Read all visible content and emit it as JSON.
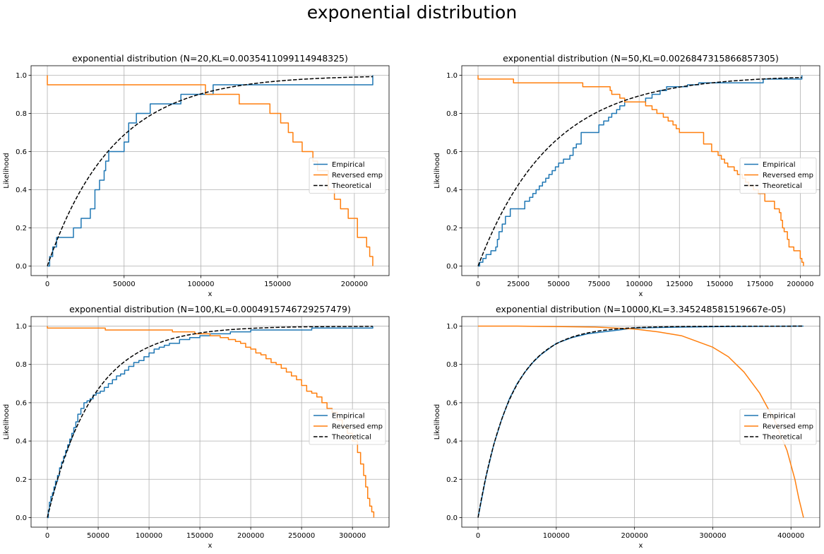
{
  "figure": {
    "suptitle": "exponential distribution"
  },
  "legend_labels": [
    "Empirical",
    "Reversed emp",
    "Theoretical"
  ],
  "colors": {
    "empirical": "#1f77b4",
    "reversed": "#ff7f0e",
    "theoretical": "#000000",
    "grid": "#b0b0b0"
  },
  "chart_data": [
    {
      "type": "line",
      "title": "exponential distribution (N=20,KL=0.0035411099114948325)",
      "xlabel": "x",
      "ylabel": "Likelihood",
      "xlim": [
        -10600,
        222600
      ],
      "ylim": [
        -0.05,
        1.05
      ],
      "xticks": [
        0,
        50000,
        100000,
        150000,
        200000
      ],
      "yticks": [
        0.0,
        0.2,
        0.4,
        0.6,
        0.8,
        1.0
      ],
      "grid": true,
      "legend_position": "center right",
      "theoretical_scale": 43000,
      "series": [
        {
          "name": "Empirical",
          "style": "step",
          "x": [
            0,
            1500,
            3500,
            6000,
            12000,
            17000,
            22000,
            25000,
            28000,
            31000,
            34000,
            37000,
            38000,
            40000,
            42000,
            45000,
            50000,
            53000,
            58000,
            62000,
            67000,
            87000,
            105000,
            108000,
            212000
          ],
          "y": [
            0,
            0.05,
            0.1,
            0.15,
            0.15,
            0.2,
            0.25,
            0.25,
            0.3,
            0.4,
            0.45,
            0.5,
            0.55,
            0.6,
            0.6,
            0.6,
            0.65,
            0.75,
            0.8,
            0.8,
            0.85,
            0.9,
            0.9,
            0.95,
            1.0
          ]
        },
        {
          "name": "Reversed emp",
          "style": "step",
          "x": [
            0,
            0,
            103000,
            108000,
            125000,
            145000,
            152000,
            157000,
            160000,
            166000,
            173000,
            176000,
            183000,
            187000,
            191000,
            196000,
            202000,
            208000,
            210000,
            212000
          ],
          "y": [
            1.0,
            0.95,
            0.9,
            0.9,
            0.85,
            0.8,
            0.75,
            0.7,
            0.65,
            0.6,
            0.55,
            0.5,
            0.4,
            0.35,
            0.3,
            0.25,
            0.15,
            0.1,
            0.05,
            0.0
          ]
        }
      ]
    },
    {
      "type": "line",
      "title": "exponential distribution (N=50,KL=0.0026847315866857305)",
      "xlabel": "x",
      "ylabel": "Likelihood",
      "xlim": [
        -10100,
        212100
      ],
      "ylim": [
        -0.05,
        1.05
      ],
      "xticks": [
        0,
        25000,
        50000,
        75000,
        100000,
        125000,
        150000,
        175000,
        200000
      ],
      "yticks": [
        0.0,
        0.2,
        0.4,
        0.6,
        0.8,
        1.0
      ],
      "grid": true,
      "legend_position": "center right",
      "theoretical_scale": 45000,
      "series": [
        {
          "name": "Empirical",
          "style": "step",
          "x": [
            0,
            1000,
            3000,
            5000,
            8000,
            11000,
            12000,
            13000,
            15000,
            17000,
            20000,
            24000,
            29000,
            32000,
            34000,
            36000,
            38000,
            40000,
            42000,
            44000,
            46000,
            48000,
            50000,
            53000,
            57000,
            59000,
            61000,
            64000,
            68000,
            75000,
            78000,
            81000,
            83000,
            86000,
            88000,
            91000,
            96000,
            99000,
            101000,
            104000,
            108000,
            113000,
            117000,
            120000,
            130000,
            137000,
            143000,
            150000,
            177000,
            189000,
            201000
          ],
          "y": [
            0,
            0.02,
            0.04,
            0.06,
            0.08,
            0.1,
            0.14,
            0.18,
            0.22,
            0.26,
            0.3,
            0.3,
            0.34,
            0.36,
            0.38,
            0.4,
            0.42,
            0.44,
            0.46,
            0.48,
            0.5,
            0.52,
            0.54,
            0.56,
            0.58,
            0.62,
            0.64,
            0.7,
            0.7,
            0.74,
            0.76,
            0.78,
            0.8,
            0.82,
            0.84,
            0.86,
            0.86,
            0.86,
            0.86,
            0.88,
            0.9,
            0.92,
            0.94,
            0.94,
            0.95,
            0.96,
            0.96,
            0.96,
            0.98,
            0.98,
            1.0
          ]
        },
        {
          "name": "Reversed emp",
          "style": "step",
          "x": [
            0,
            0,
            22000,
            65000,
            82000,
            83000,
            88000,
            91000,
            96000,
            104000,
            108000,
            111000,
            115000,
            118000,
            121000,
            123000,
            125000,
            137000,
            140000,
            145000,
            149000,
            151000,
            153000,
            155000,
            159000,
            161000,
            164000,
            166000,
            168000,
            171000,
            174000,
            178000,
            184000,
            187000,
            188000,
            189000,
            190000,
            192000,
            193000,
            196000,
            200000,
            201000,
            202000
          ],
          "y": [
            1.0,
            0.98,
            0.96,
            0.94,
            0.92,
            0.9,
            0.88,
            0.86,
            0.86,
            0.84,
            0.82,
            0.8,
            0.78,
            0.76,
            0.74,
            0.72,
            0.7,
            0.7,
            0.64,
            0.6,
            0.58,
            0.56,
            0.54,
            0.52,
            0.5,
            0.48,
            0.46,
            0.44,
            0.42,
            0.4,
            0.38,
            0.34,
            0.3,
            0.28,
            0.24,
            0.2,
            0.18,
            0.14,
            0.1,
            0.08,
            0.04,
            0.02,
            0.0
          ]
        }
      ]
    },
    {
      "type": "line",
      "title": "exponential distribution (N=100,KL=0.0004915746729257479)",
      "xlabel": "x",
      "ylabel": "Likelihood",
      "xlim": [
        -16000,
        336000
      ],
      "ylim": [
        -0.05,
        1.05
      ],
      "xticks": [
        0,
        50000,
        100000,
        150000,
        200000,
        250000,
        300000
      ],
      "yticks": [
        0.0,
        0.2,
        0.4,
        0.6,
        0.8,
        1.0
      ],
      "grid": true,
      "legend_position": "center right",
      "theoretical_scale": 45000,
      "series": [
        {
          "name": "Empirical",
          "style": "step",
          "x": [
            0,
            1000,
            2000,
            3500,
            5000,
            6500,
            8000,
            10000,
            12000,
            14000,
            16000,
            18000,
            20000,
            22000,
            24000,
            26000,
            28000,
            30000,
            33000,
            36000,
            39000,
            42000,
            45000,
            48000,
            52000,
            56000,
            60000,
            64000,
            68000,
            72000,
            76000,
            80000,
            85000,
            90000,
            95000,
            100000,
            105000,
            110000,
            115000,
            120000,
            130000,
            140000,
            150000,
            160000,
            180000,
            200000,
            230000,
            260000,
            290000,
            320000
          ],
          "y": [
            0,
            0.04,
            0.08,
            0.11,
            0.13,
            0.16,
            0.19,
            0.22,
            0.26,
            0.29,
            0.32,
            0.35,
            0.38,
            0.41,
            0.44,
            0.47,
            0.5,
            0.54,
            0.57,
            0.6,
            0.61,
            0.62,
            0.64,
            0.65,
            0.66,
            0.68,
            0.7,
            0.72,
            0.74,
            0.75,
            0.77,
            0.79,
            0.81,
            0.82,
            0.84,
            0.86,
            0.88,
            0.89,
            0.9,
            0.91,
            0.93,
            0.94,
            0.95,
            0.96,
            0.97,
            0.98,
            0.98,
            0.99,
            0.99,
            1.0
          ]
        },
        {
          "name": "Reversed emp",
          "style": "step",
          "x": [
            0,
            0,
            57000,
            123000,
            145000,
            160000,
            170000,
            178000,
            185000,
            190000,
            195000,
            200000,
            205000,
            210000,
            215000,
            220000,
            225000,
            230000,
            235000,
            240000,
            245000,
            250000,
            255000,
            260000,
            265000,
            270000,
            275000,
            280000,
            285000,
            290000,
            295000,
            300000,
            305000,
            308000,
            311000,
            313000,
            315000,
            317000,
            319000,
            321000
          ],
          "y": [
            1.0,
            0.99,
            0.98,
            0.97,
            0.96,
            0.95,
            0.94,
            0.93,
            0.92,
            0.91,
            0.89,
            0.88,
            0.86,
            0.85,
            0.83,
            0.81,
            0.8,
            0.78,
            0.76,
            0.74,
            0.72,
            0.69,
            0.66,
            0.65,
            0.63,
            0.6,
            0.57,
            0.55,
            0.51,
            0.47,
            0.44,
            0.4,
            0.34,
            0.28,
            0.22,
            0.16,
            0.1,
            0.06,
            0.03,
            0.0
          ]
        }
      ]
    },
    {
      "type": "line",
      "title": "exponential distribution (N=10000,KL=3.345248581519667e-05)",
      "xlabel": "x",
      "ylabel": "Likelihood",
      "xlim": [
        -20800,
        436800
      ],
      "ylim": [
        -0.05,
        1.05
      ],
      "xticks": [
        0,
        100000,
        200000,
        300000,
        400000
      ],
      "yticks": [
        0.0,
        0.2,
        0.4,
        0.6,
        0.8,
        1.0
      ],
      "grid": true,
      "legend_position": "center right",
      "theoretical_scale": 42000,
      "series": [
        {
          "name": "Empirical",
          "style": "line",
          "x": [
            0,
            10000,
            20000,
            30000,
            40000,
            50000,
            60000,
            70000,
            80000,
            90000,
            100000,
            120000,
            140000,
            160000,
            180000,
            200000,
            230000,
            260000,
            300000,
            350000,
            416000
          ],
          "y": [
            0,
            0.21,
            0.38,
            0.51,
            0.62,
            0.7,
            0.76,
            0.81,
            0.85,
            0.88,
            0.91,
            0.94,
            0.96,
            0.97,
            0.98,
            0.99,
            0.993,
            0.995,
            0.997,
            0.999,
            1.0
          ]
        },
        {
          "name": "Reversed emp",
          "style": "line",
          "x": [
            0,
            50000,
            100000,
            150000,
            200000,
            230000,
            260000,
            280000,
            300000,
            320000,
            340000,
            360000,
            380000,
            395000,
            405000,
            410000,
            416000
          ],
          "y": [
            1.0,
            1.0,
            0.998,
            0.995,
            0.985,
            0.97,
            0.95,
            0.92,
            0.89,
            0.84,
            0.76,
            0.65,
            0.5,
            0.35,
            0.2,
            0.1,
            0.0
          ]
        }
      ]
    }
  ]
}
